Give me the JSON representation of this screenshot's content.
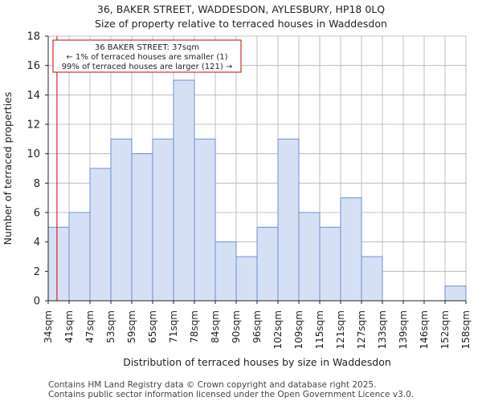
{
  "title_line1": "36, BAKER STREET, WADDESDON, AYLESBURY, HP18 0LQ",
  "title_line2": "Size of property relative to terraced houses in Waddesdon",
  "footer_line1": "Contains HM Land Registry data © Crown copyright and database right 2025.",
  "footer_line2": "Contains public sector information licensed under the Open Government Licence v3.0.",
  "colors": {
    "bar_fill": "#d6e0f5",
    "bar_stroke": "#6b8fcf",
    "marker": "#cc0000",
    "grid": "#b0b0b0"
  },
  "chart_data": {
    "type": "bar",
    "title": "Size of property relative to terraced houses in Waddesdon",
    "xlabel": "Distribution of terraced houses by size in Waddesdon",
    "ylabel": "Number of terraced properties",
    "ylim": [
      0,
      18
    ],
    "yticks": [
      0,
      2,
      4,
      6,
      8,
      10,
      12,
      14,
      16,
      18
    ],
    "grid": true,
    "bin_edges_labels": [
      "34sqm",
      "41sqm",
      "47sqm",
      "53sqm",
      "59sqm",
      "65sqm",
      "71sqm",
      "78sqm",
      "84sqm",
      "90sqm",
      "96sqm",
      "102sqm",
      "109sqm",
      "115sqm",
      "121sqm",
      "127sqm",
      "133sqm",
      "139sqm",
      "146sqm",
      "152sqm",
      "158sqm"
    ],
    "values": [
      5,
      6,
      9,
      11,
      10,
      11,
      15,
      11,
      4,
      3,
      5,
      11,
      6,
      5,
      7,
      3,
      0,
      0,
      0,
      1
    ],
    "marker_value_bin": 0.42,
    "annotation": {
      "line1": "36 BAKER STREET: 37sqm",
      "line2": "← 1% of terraced houses are smaller (1)",
      "line3": "99% of terraced houses are larger (121) →"
    }
  }
}
